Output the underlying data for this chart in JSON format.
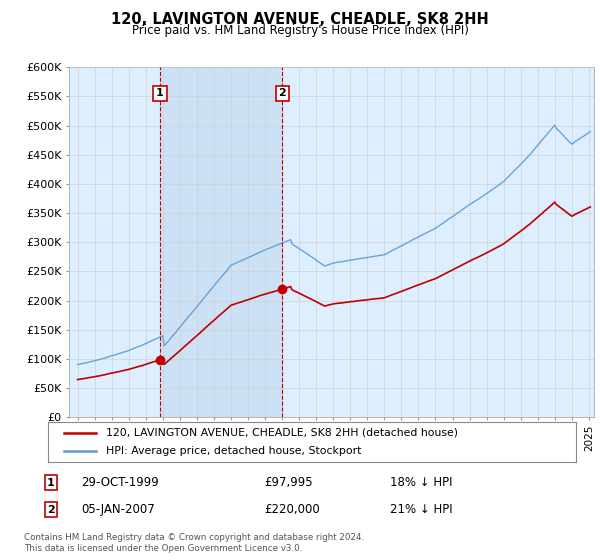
{
  "title": "120, LAVINGTON AVENUE, CHEADLE, SK8 2HH",
  "subtitle": "Price paid vs. HM Land Registry's House Price Index (HPI)",
  "legend_line1": "120, LAVINGTON AVENUE, CHEADLE, SK8 2HH (detached house)",
  "legend_line2": "HPI: Average price, detached house, Stockport",
  "footnote": "Contains HM Land Registry data © Crown copyright and database right 2024.\nThis data is licensed under the Open Government Licence v3.0.",
  "annotation1": {
    "label": "1",
    "date": "29-OCT-1999",
    "price": "£97,995",
    "note": "18% ↓ HPI"
  },
  "annotation2": {
    "label": "2",
    "date": "05-JAN-2007",
    "price": "£220,000",
    "note": "21% ↓ HPI"
  },
  "hpi_color": "#5b9bd5",
  "price_color": "#c00000",
  "annotation_color": "#c00000",
  "grid_color": "#d0d0d0",
  "bg_color": "#ddeeff",
  "shade_color": "#cce0f5",
  "ylim": [
    0,
    600000
  ],
  "yticks": [
    0,
    50000,
    100000,
    150000,
    200000,
    250000,
    300000,
    350000,
    400000,
    450000,
    500000,
    550000,
    600000
  ],
  "ytick_labels": [
    "£0",
    "£50K",
    "£100K",
    "£150K",
    "£200K",
    "£250K",
    "£300K",
    "£350K",
    "£400K",
    "£450K",
    "£500K",
    "£550K",
    "£600K"
  ],
  "sale1_year": 1999.83,
  "sale1_price": 97995,
  "sale2_year": 2007.02,
  "sale2_price": 220000,
  "xlim_left": 1994.5,
  "xlim_right": 2025.3
}
